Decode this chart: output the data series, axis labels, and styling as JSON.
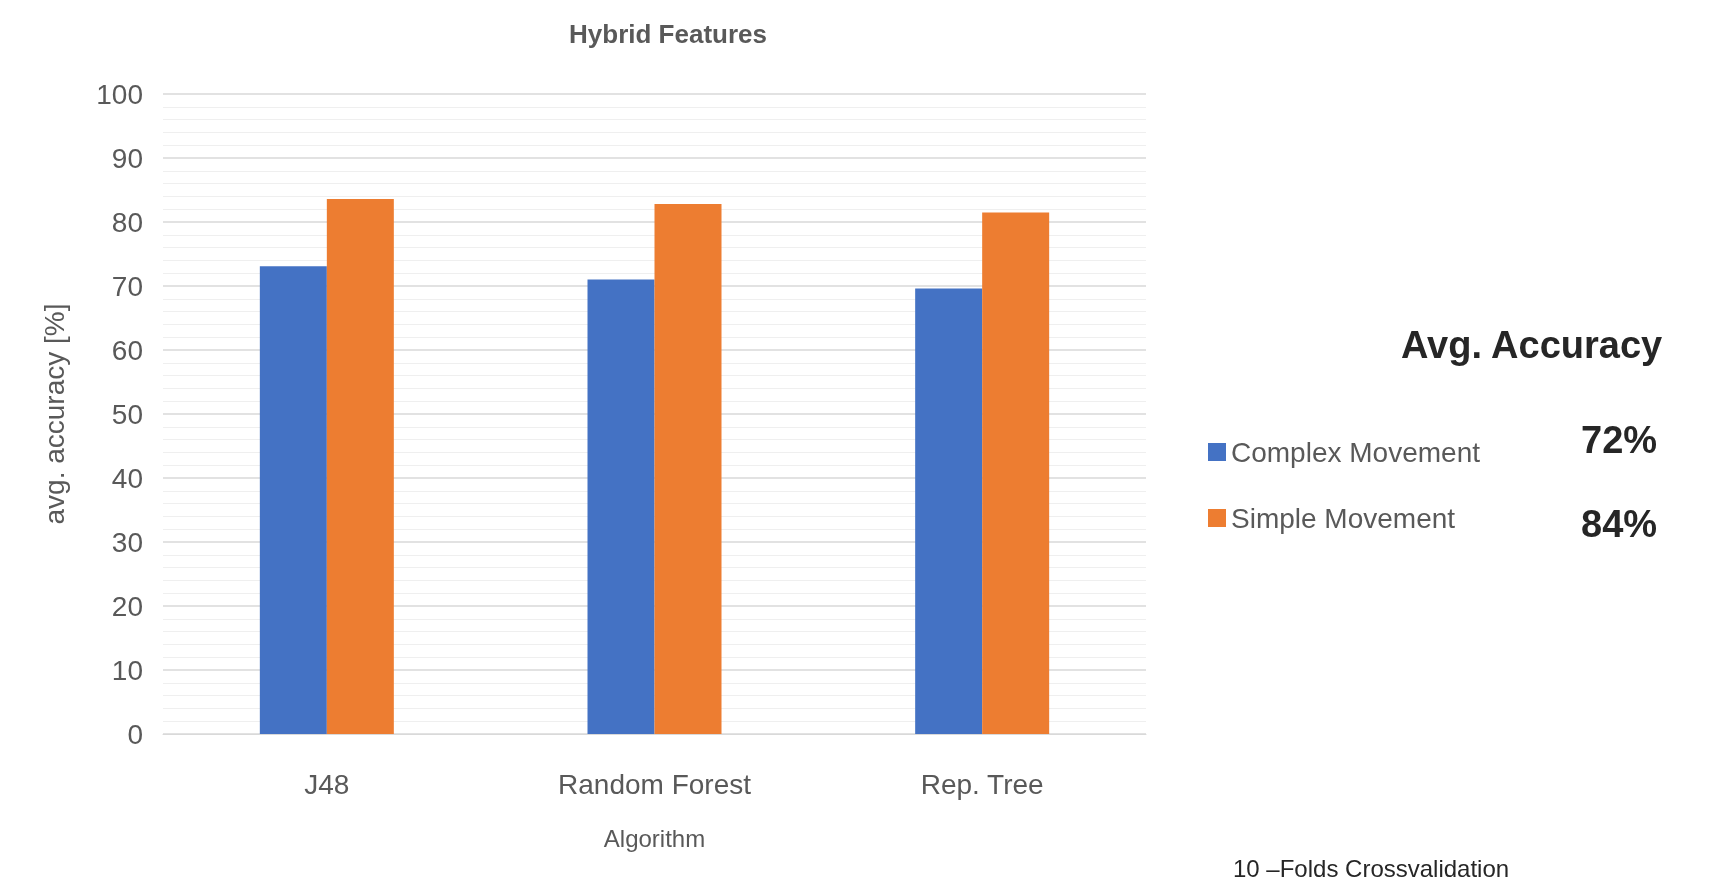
{
  "chart_data": {
    "type": "bar",
    "title": "Hybrid Features",
    "xlabel": "Algorithm",
    "ylabel": "avg. accuracy [%]",
    "categories": [
      "J48",
      "Random Forest",
      "Rep. Tree"
    ],
    "series": [
      {
        "name": "Complex Movement",
        "color": "#4472c4",
        "values": [
          73.1,
          71.0,
          69.6
        ]
      },
      {
        "name": "Simple Movement",
        "color": "#ed7d31",
        "values": [
          83.6,
          82.8,
          81.5
        ]
      }
    ],
    "ylim": [
      0,
      100
    ],
    "yticks": [
      0,
      10,
      20,
      30,
      40,
      50,
      60,
      70,
      80,
      90,
      100
    ],
    "grid": "y",
    "legend": "right",
    "annotations": [
      "Avg. Accuracy",
      "72%",
      "84%",
      "10 –Folds Crossvalidation"
    ]
  }
}
